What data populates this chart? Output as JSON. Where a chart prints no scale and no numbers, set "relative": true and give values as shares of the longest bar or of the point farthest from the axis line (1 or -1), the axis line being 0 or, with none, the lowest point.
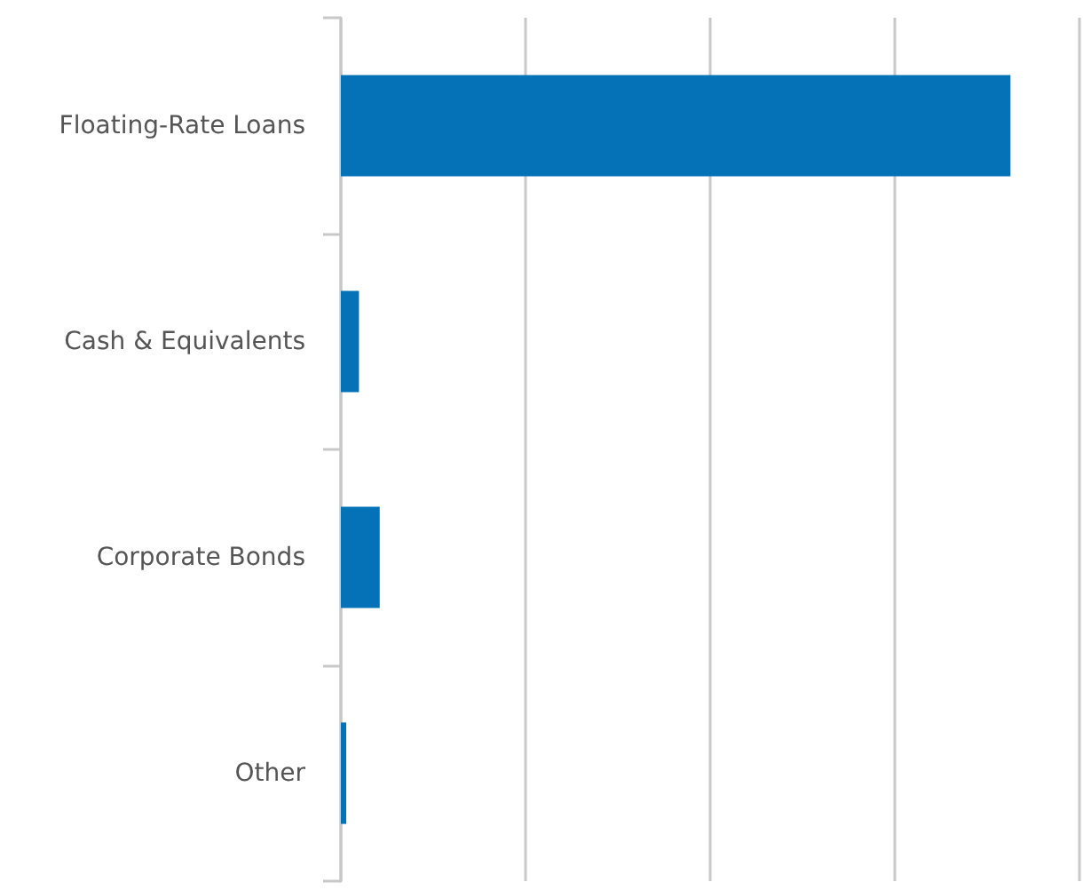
{
  "chart_data": {
    "type": "bar",
    "orientation": "horizontal",
    "relative": true,
    "categories": [
      "Floating-Rate Loans",
      "Cash & Equivalents",
      "Corporate Bonds",
      "Other"
    ],
    "values": [
      1,
      0.027,
      0.058,
      0.008
    ],
    "color": "#0572b8",
    "grid": "x"
  }
}
